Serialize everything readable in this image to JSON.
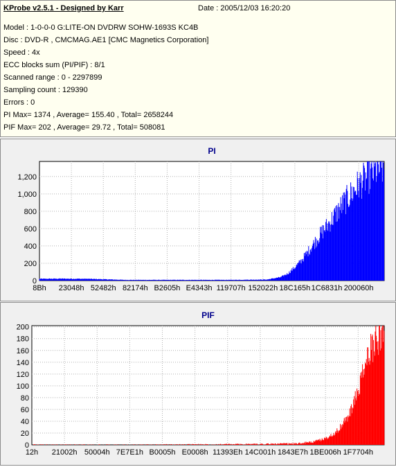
{
  "header": {
    "title": "KProbe v2.5.1 - Designed by Karr",
    "date": "Date : 2005/12/03 16:20:20"
  },
  "info_lines": [
    "Model : 1-0-0-0 G:LITE-ON DVDRW SOHW-1693S KC4B",
    "Disc : DVD-R , CMCMAG.AE1 [CMC Magnetics Corporation]",
    "Speed : 4x",
    "ECC blocks sum (PI/PIF) : 8/1",
    "Scanned range : 0 - 2297899",
    "Sampling count : 129390",
    "Errors : 0",
    "PI Max= 1374 , Average= 155.40 , Total= 2658244",
    "PIF Max= 202 , Average= 29.72 , Total= 508081"
  ],
  "chart_data": [
    {
      "type": "area",
      "title": "PI",
      "color": "#0000ff",
      "ylim": [
        0,
        1374
      ],
      "yticks": [
        0,
        200,
        400,
        600,
        800,
        1000,
        1200
      ],
      "ytick_labels": [
        "0",
        "200",
        "400",
        "600",
        "800",
        "1,000",
        "1,200"
      ],
      "xtick_labels": [
        "8Bh",
        "23048h",
        "52482h",
        "82174h",
        "B2605h",
        "E4343h",
        "119707h",
        "152022h",
        "18C165h",
        "1C6831h",
        "200060h"
      ],
      "grid": true,
      "series": [
        {
          "x_fraction": [
            0,
            0.06,
            0.14,
            0.25,
            0.4,
            0.55,
            0.66,
            0.7,
            0.72,
            0.74,
            0.76,
            0.78,
            0.8,
            0.82,
            0.84,
            0.86,
            0.88,
            0.9,
            0.92,
            0.94,
            0.96,
            0.98,
            1.0
          ],
          "values": [
            20,
            22,
            20,
            8,
            8,
            8,
            12,
            40,
            80,
            150,
            230,
            340,
            450,
            560,
            660,
            770,
            880,
            980,
            1080,
            1160,
            1220,
            1280,
            1300
          ]
        }
      ]
    },
    {
      "type": "area",
      "title": "PIF",
      "color": "#ff0000",
      "ylim": [
        0,
        202
      ],
      "yticks": [
        0,
        20,
        40,
        60,
        80,
        100,
        120,
        140,
        160,
        180,
        200
      ],
      "ytick_labels": [
        "0",
        "20",
        "40",
        "60",
        "80",
        "100",
        "120",
        "140",
        "160",
        "180",
        "200"
      ],
      "xtick_labels": [
        "12h",
        "21002h",
        "50004h",
        "7E7E1h",
        "B0005h",
        "E0008h",
        "11393Eh",
        "14C001h",
        "1843E7h",
        "1BE006h",
        "1F7704h"
      ],
      "grid": true,
      "series": [
        {
          "x_fraction": [
            0,
            0.3,
            0.6,
            0.75,
            0.8,
            0.84,
            0.87,
            0.9,
            0.92,
            0.94,
            0.96,
            0.98,
            1.0
          ],
          "values": [
            0,
            0,
            1,
            2,
            5,
            12,
            25,
            50,
            80,
            120,
            160,
            185,
            190
          ]
        }
      ]
    }
  ]
}
